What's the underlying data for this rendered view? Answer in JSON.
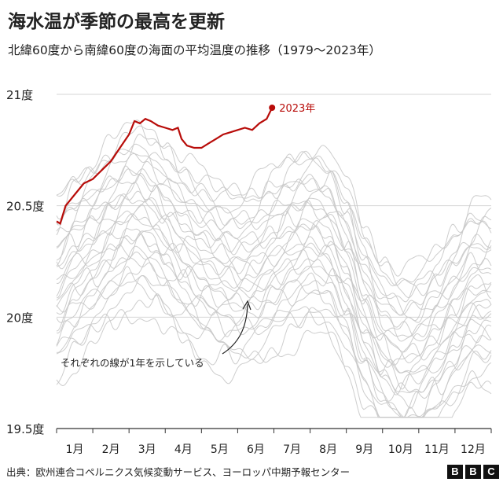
{
  "title": "海水温が季節の最高を更新",
  "subtitle": "北緯60度から南緯60度の海面の平均温度の推移（1979～2023年）",
  "footer": "出典：欧州連合コペルニクス気候変動サービス、ヨーロッパ中期予報センター",
  "brand": {
    "letters": [
      "B",
      "B",
      "C"
    ]
  },
  "annotation": "それぞれの線が1年を示している",
  "colors": {
    "highlight": "#b80c09",
    "history": "#c8c8c8",
    "grid": "#d6d6d6",
    "text": "#222222"
  },
  "chart_data": {
    "type": "line",
    "ylim": [
      19.5,
      21.0
    ],
    "yticks": [
      {
        "value": 21.0,
        "label": "21度"
      },
      {
        "value": 20.5,
        "label": "20.5度"
      },
      {
        "value": 20.0,
        "label": "20度"
      },
      {
        "value": 19.5,
        "label": "19.5度"
      }
    ],
    "months": [
      "1月",
      "2月",
      "3月",
      "4月",
      "5月",
      "6月",
      "7月",
      "8月",
      "9月",
      "10月",
      "11月",
      "12月"
    ],
    "grid": true,
    "highlight": {
      "name": "2023年",
      "points": [
        [
          1,
          20.43
        ],
        [
          1.1,
          20.42
        ],
        [
          1.25,
          20.5
        ],
        [
          1.5,
          20.55
        ],
        [
          1.75,
          20.6
        ],
        [
          2.0,
          20.62
        ],
        [
          2.25,
          20.66
        ],
        [
          2.5,
          20.7
        ],
        [
          2.75,
          20.76
        ],
        [
          3.0,
          20.82
        ],
        [
          3.15,
          20.88
        ],
        [
          3.3,
          20.87
        ],
        [
          3.45,
          20.89
        ],
        [
          3.6,
          20.88
        ],
        [
          3.8,
          20.86
        ],
        [
          4.0,
          20.85
        ],
        [
          4.2,
          20.84
        ],
        [
          4.35,
          20.85
        ],
        [
          4.45,
          20.8
        ],
        [
          4.6,
          20.77
        ],
        [
          4.8,
          20.76
        ],
        [
          5.0,
          20.76
        ],
        [
          5.2,
          20.78
        ],
        [
          5.4,
          20.8
        ],
        [
          5.6,
          20.82
        ],
        [
          5.8,
          20.83
        ],
        [
          6.0,
          20.84
        ],
        [
          6.2,
          20.85
        ],
        [
          6.4,
          20.84
        ],
        [
          6.6,
          20.87
        ],
        [
          6.8,
          20.89
        ],
        [
          6.95,
          20.94
        ]
      ]
    },
    "history_series": [
      {
        "offset": -0.55,
        "amp": 0.07
      },
      {
        "offset": -0.5,
        "amp": 0.08
      },
      {
        "offset": -0.45,
        "amp": 0.06
      },
      {
        "offset": -0.42,
        "amp": 0.09
      },
      {
        "offset": -0.38,
        "amp": 0.05
      },
      {
        "offset": -0.35,
        "amp": 0.08
      },
      {
        "offset": -0.32,
        "amp": 0.07
      },
      {
        "offset": -0.3,
        "amp": 0.1
      },
      {
        "offset": -0.27,
        "amp": 0.06
      },
      {
        "offset": -0.25,
        "amp": 0.09
      },
      {
        "offset": -0.22,
        "amp": 0.07
      },
      {
        "offset": -0.2,
        "amp": 0.08
      },
      {
        "offset": -0.18,
        "amp": 0.06
      },
      {
        "offset": -0.15,
        "amp": 0.09
      },
      {
        "offset": -0.13,
        "amp": 0.07
      },
      {
        "offset": -0.1,
        "amp": 0.08
      },
      {
        "offset": -0.08,
        "amp": 0.06
      },
      {
        "offset": -0.05,
        "amp": 0.1
      },
      {
        "offset": -0.03,
        "amp": 0.07
      },
      {
        "offset": 0.0,
        "amp": 0.08
      },
      {
        "offset": 0.02,
        "amp": 0.06
      },
      {
        "offset": 0.05,
        "amp": 0.09
      },
      {
        "offset": 0.08,
        "amp": 0.07
      },
      {
        "offset": 0.1,
        "amp": 0.08
      },
      {
        "offset": 0.13,
        "amp": 0.06
      },
      {
        "offset": 0.16,
        "amp": 0.09
      },
      {
        "offset": 0.19,
        "amp": 0.07
      },
      {
        "offset": 0.22,
        "amp": 0.08
      },
      {
        "offset": 0.25,
        "amp": 0.06
      },
      {
        "offset": 0.28,
        "amp": 0.07
      }
    ],
    "climatology": [
      [
        1,
        20.25
      ],
      [
        1.5,
        20.35
      ],
      [
        2,
        20.42
      ],
      [
        2.5,
        20.5
      ],
      [
        3,
        20.56
      ],
      [
        3.3,
        20.58
      ],
      [
        3.7,
        20.55
      ],
      [
        4,
        20.5
      ],
      [
        4.5,
        20.42
      ],
      [
        5,
        20.36
      ],
      [
        5.5,
        20.32
      ],
      [
        6,
        20.3
      ],
      [
        6.5,
        20.32
      ],
      [
        7,
        20.38
      ],
      [
        7.5,
        20.44
      ],
      [
        8,
        20.48
      ],
      [
        8.5,
        20.45
      ],
      [
        9,
        20.32
      ],
      [
        9.5,
        20.12
      ],
      [
        10,
        19.98
      ],
      [
        10.5,
        19.92
      ],
      [
        11,
        19.94
      ],
      [
        11.5,
        20.02
      ],
      [
        12,
        20.12
      ],
      [
        12.5,
        20.22
      ]
    ]
  }
}
